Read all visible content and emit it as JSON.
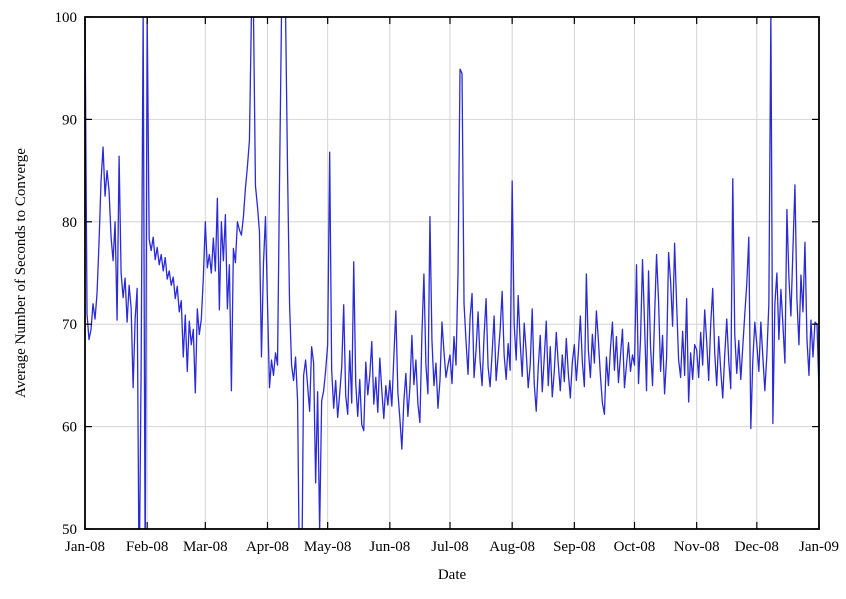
{
  "chart_data": {
    "type": "line",
    "title": "",
    "xlabel": "Date",
    "ylabel": "Average Number of Seconds to Converge",
    "ylim": [
      50,
      100
    ],
    "yticks": [
      50,
      60,
      70,
      80,
      90,
      100
    ],
    "grid": true,
    "legend": "none",
    "line_color": "#2b2bd6",
    "grid_color": "#d4d4d4",
    "frame_color": "#000000",
    "x_ticks": [
      {
        "label": "Jan-08",
        "day": 0
      },
      {
        "label": "Feb-08",
        "day": 31
      },
      {
        "label": "Mar-08",
        "day": 60
      },
      {
        "label": "Apr-08",
        "day": 91
      },
      {
        "label": "May-08",
        "day": 121
      },
      {
        "label": "Jun-08",
        "day": 152
      },
      {
        "label": "Jul-08",
        "day": 182
      },
      {
        "label": "Aug-08",
        "day": 213
      },
      {
        "label": "Sep-08",
        "day": 244
      },
      {
        "label": "Oct-08",
        "day": 274
      },
      {
        "label": "Nov-08",
        "day": 305
      },
      {
        "label": "Dec-08",
        "day": 335
      },
      {
        "label": "Jan-09",
        "day": 366
      }
    ],
    "x_total_days": 366,
    "series": [
      {
        "name": "average-seconds-to-converge",
        "x_unit": "day index from 2008-01-01 (one point per day)",
        "note": "values above 100 or below 50 are clipped by the plot frame in the rendering",
        "values": [
          100.5,
          71.0,
          68.5,
          69.5,
          72.0,
          70.5,
          73.0,
          78.0,
          84.0,
          87.3,
          82.5,
          85.0,
          83.0,
          78.5,
          76.2,
          80.0,
          70.4,
          86.4,
          75.0,
          72.6,
          74.5,
          70.2,
          73.8,
          71.6,
          63.8,
          70.5,
          73.5,
          44.0,
          66.0,
          100.5,
          46.0,
          100.5,
          78.3,
          77.2,
          78.5,
          76.3,
          77.5,
          75.8,
          76.8,
          75.2,
          76.5,
          74.4,
          75.2,
          73.8,
          74.6,
          72.5,
          73.7,
          71.2,
          72.3,
          66.8,
          70.9,
          65.4,
          70.3,
          68.0,
          69.5,
          63.3,
          71.5,
          69.0,
          70.5,
          74.5,
          80.0,
          75.5,
          76.8,
          75.0,
          78.4,
          75.2,
          82.3,
          71.4,
          80.0,
          76.2,
          80.7,
          71.5,
          75.8,
          63.5,
          77.4,
          76.0,
          80.0,
          79.2,
          78.7,
          80.5,
          83.3,
          85.4,
          88.0,
          100.5,
          100.5,
          83.5,
          81.5,
          79.0,
          66.8,
          76.0,
          80.5,
          72.0,
          63.8,
          66.5,
          65.0,
          67.2,
          66.0,
          84.0,
          100.5,
          100.5,
          100.5,
          85.0,
          72.0,
          66.0,
          64.5,
          66.8,
          62.5,
          44.0,
          43.0,
          65.0,
          66.5,
          64.0,
          61.5,
          67.8,
          66.2,
          54.5,
          63.4,
          49.8,
          62.5,
          63.5,
          65.5,
          68.0,
          86.8,
          65.5,
          61.8,
          64.5,
          60.9,
          63.2,
          65.8,
          71.9,
          63.0,
          61.2,
          67.4,
          62.3,
          76.1,
          64.2,
          61.0,
          64.6,
          60.2,
          59.6,
          66.3,
          63.1,
          65.0,
          68.3,
          62.2,
          64.8,
          61.4,
          66.7,
          63.5,
          60.8,
          64.0,
          62.1,
          64.5,
          62.0,
          66.8,
          71.3,
          63.4,
          60.8,
          57.8,
          62.5,
          65.2,
          61.0,
          63.8,
          68.9,
          64.1,
          66.5,
          62.2,
          60.4,
          69.0,
          74.9,
          66.0,
          63.2,
          80.5,
          68.4,
          64.0,
          66.2,
          61.8,
          64.5,
          70.2,
          67.3,
          64.8,
          66.0,
          67.0,
          64.2,
          68.8,
          66.0,
          75.0,
          94.9,
          94.5,
          72.0,
          68.3,
          65.1,
          70.6,
          73.0,
          64.8,
          67.5,
          71.2,
          66.4,
          64.0,
          68.9,
          72.5,
          65.8,
          63.9,
          67.2,
          70.8,
          64.5,
          66.9,
          69.4,
          73.2,
          67.0,
          64.6,
          68.1,
          65.5,
          84.0,
          70.0,
          66.5,
          72.8,
          68.2,
          64.9,
          70.1,
          67.3,
          63.8,
          66.0,
          71.5,
          64.2,
          61.5,
          65.8,
          68.9,
          63.4,
          66.7,
          70.3,
          64.0,
          67.8,
          62.9,
          65.4,
          69.2,
          66.1,
          63.5,
          67.0,
          64.4,
          68.6,
          65.2,
          62.8,
          66.3,
          68.0,
          64.5,
          67.2,
          70.8,
          66.3,
          63.9,
          74.9,
          67.5,
          64.8,
          69.0,
          66.2,
          71.3,
          68.4,
          65.0,
          62.3,
          61.2,
          66.8,
          64.0,
          67.6,
          70.2,
          65.5,
          68.8,
          64.3,
          66.9,
          69.5,
          63.8,
          66.0,
          68.2,
          65.4,
          67.0,
          66.0,
          75.8,
          64.2,
          68.5,
          76.3,
          70.1,
          63.5,
          75.2,
          67.8,
          64.0,
          70.6,
          76.8,
          72.3,
          65.4,
          68.9,
          63.2,
          66.7,
          77.0,
          74.2,
          69.8,
          77.9,
          72.0,
          66.5,
          64.8,
          69.3,
          65.0,
          72.5,
          62.4,
          67.2,
          64.6,
          68.0,
          67.5,
          64.8,
          69.2,
          66.0,
          71.4,
          68.3,
          64.5,
          70.0,
          73.5,
          67.2,
          64.0,
          68.8,
          65.5,
          62.8,
          67.0,
          70.5,
          66.4,
          63.7,
          84.2,
          69.0,
          65.2,
          68.4,
          64.6,
          67.8,
          71.0,
          74.0,
          78.5,
          59.8,
          66.5,
          70.2,
          68.0,
          65.4,
          70.2,
          66.8,
          63.5,
          67.0,
          72.0,
          100.5,
          60.3,
          72.0,
          75.0,
          68.5,
          73.4,
          70.0,
          66.2,
          81.2,
          74.5,
          70.8,
          77.3,
          83.6,
          72.4,
          68.0,
          74.8,
          71.2,
          78.0,
          68.5,
          65.0,
          70.4,
          66.8,
          70.2,
          70.0,
          63.5
        ]
      }
    ]
  }
}
